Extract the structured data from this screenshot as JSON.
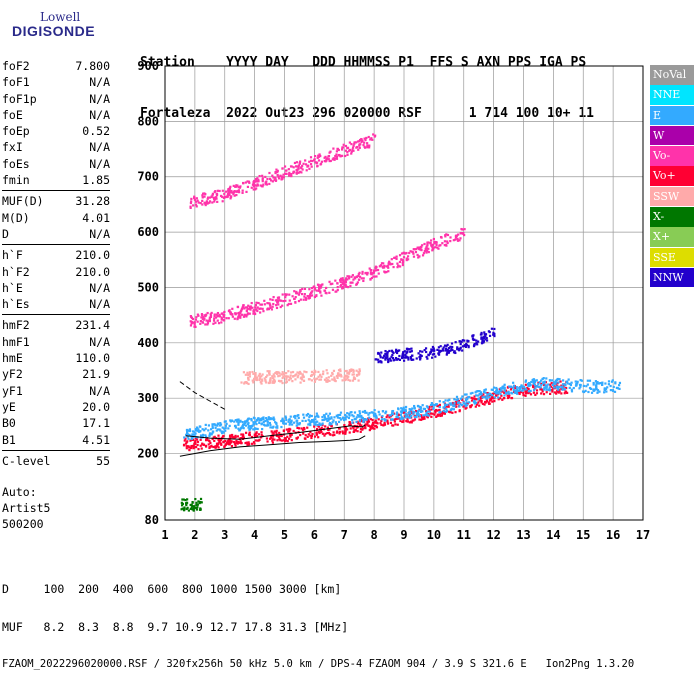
{
  "logo": {
    "line1": "Lowell",
    "line2": "DIGISONDE"
  },
  "header": {
    "labels": [
      "Station",
      "YYYY DAY",
      "DDD HHMMSS P1",
      "FFS S AXN PPS IGA PS"
    ],
    "values": [
      "Fortaleza",
      "2022 Out23",
      "296 020000 RSF",
      "1 714 100 10+ 11"
    ]
  },
  "params_groups": [
    [
      [
        "foF2",
        "7.800"
      ],
      [
        "foF1",
        "N/A"
      ],
      [
        "foF1p",
        "N/A"
      ],
      [
        "foE",
        "N/A"
      ],
      [
        "foEp",
        "0.52"
      ],
      [
        "fxI",
        "N/A"
      ],
      [
        "foEs",
        "N/A"
      ],
      [
        "fmin",
        "1.85"
      ]
    ],
    [
      [
        "MUF(D)",
        "31.28"
      ],
      [
        "M(D)",
        "4.01"
      ],
      [
        "D",
        "N/A"
      ]
    ],
    [
      [
        "h`F",
        "210.0"
      ],
      [
        "h`F2",
        "210.0"
      ],
      [
        "h`E",
        "N/A"
      ],
      [
        "h`Es",
        "N/A"
      ]
    ],
    [
      [
        "hmF2",
        "231.4"
      ],
      [
        "hmF1",
        "N/A"
      ],
      [
        "hmE",
        "110.0"
      ],
      [
        "yF2",
        "21.9"
      ],
      [
        "yF1",
        "N/A"
      ],
      [
        "yE",
        "20.0"
      ],
      [
        "B0",
        "17.1"
      ],
      [
        "B1",
        "4.51"
      ]
    ],
    [
      [
        "C-level",
        "55"
      ]
    ]
  ],
  "auto": {
    "line1": "Auto:",
    "line2": "Artist5",
    "line3": "500200"
  },
  "footer": {
    "d_row": "D     100  200  400  600  800 1000 1500 3000 [km]",
    "muf_row": "MUF   8.2  8.3  8.8  9.7 10.9 12.7 17.8 31.3 [MHz]",
    "info": "FZAOM_2022296020000.RSF / 320fx256h 50 kHz 5.0 km / DPS-4 FZAOM 904 / 3.9 S 321.6 E   Ion2Png 1.3.20"
  },
  "legend": [
    {
      "label": "NoVal",
      "color": "#9a9a9a"
    },
    {
      "label": "NNE",
      "color": "#00e5ff"
    },
    {
      "label": "E",
      "color": "#33aaff"
    },
    {
      "label": "W",
      "color": "#aa00aa"
    },
    {
      "label": "Vo-",
      "color": "#ff33aa"
    },
    {
      "label": "Vo+",
      "color": "#ff0033"
    },
    {
      "label": "SSW",
      "color": "#ffaaaa"
    },
    {
      "label": "X-",
      "color": "#007700"
    },
    {
      "label": "X+",
      "color": "#88cc55"
    },
    {
      "label": "SSE",
      "color": "#dddd00"
    },
    {
      "label": "NNW",
      "color": "#2200cc"
    }
  ],
  "chart_data": {
    "type": "scatter",
    "xlim": [
      1,
      17
    ],
    "ylim": [
      80,
      900
    ],
    "xticks": [
      1,
      2,
      3,
      4,
      5,
      6,
      7,
      8,
      9,
      10,
      11,
      12,
      13,
      14,
      15,
      16,
      17
    ],
    "yticks": [
      80,
      200,
      300,
      400,
      500,
      600,
      700,
      800,
      900
    ],
    "grid": true,
    "traces": [
      {
        "name": "O-F2 trace (Vo+)",
        "color_key": "Vo+",
        "x": [
          1.6,
          2.5,
          3.5,
          4.5,
          5.5,
          6.5,
          7.5,
          8.5,
          9.5,
          10.5,
          11.5,
          12.5,
          13.5,
          14.5
        ],
        "y": [
          218,
          222,
          228,
          232,
          238,
          245,
          252,
          262,
          272,
          285,
          298,
          312,
          320,
          322
        ]
      },
      {
        "name": "O-F2 trace (E)",
        "color_key": "E",
        "x": [
          1.6,
          2.5,
          3.5,
          4.5,
          5.5,
          6.5,
          7.5,
          8.5,
          9.5,
          10.5,
          11.5,
          12.5,
          13.5,
          14.5,
          15.5,
          16.2
        ],
        "y": [
          235,
          245,
          255,
          258,
          262,
          265,
          268,
          272,
          278,
          290,
          305,
          318,
          328,
          325,
          322,
          325
        ]
      },
      {
        "name": "F2 2nd hop (Vo-)",
        "color_key": "Vo-",
        "x": [
          1.8,
          3,
          4,
          5,
          6,
          7,
          8,
          9,
          10,
          11
        ],
        "y": [
          440,
          450,
          465,
          480,
          495,
          510,
          530,
          555,
          580,
          600
        ]
      },
      {
        "name": "F2 3rd hop (Vo-)",
        "color_key": "Vo-",
        "x": [
          1.8,
          3,
          4,
          5,
          6,
          7,
          8
        ],
        "y": [
          655,
          670,
          690,
          710,
          730,
          750,
          770
        ]
      },
      {
        "name": "spread (NNW)",
        "color_key": "NNW",
        "x": [
          8,
          9,
          10,
          10.5,
          11,
          11.5,
          12
        ],
        "y": [
          375,
          380,
          385,
          390,
          400,
          410,
          420
        ]
      },
      {
        "name": "E/Es (SSW)",
        "color_key": "SSW",
        "x": [
          3.5,
          4.5,
          5.5,
          6.5,
          7.5
        ],
        "y": [
          338,
          340,
          340,
          342,
          345
        ]
      },
      {
        "name": "low echoes (X-)",
        "color_key": "X-",
        "x": [
          1.5,
          2.2
        ],
        "y": [
          110,
          110
        ]
      }
    ],
    "model_curves": [
      {
        "x": [
          1.5,
          2.5,
          3.5,
          4.5,
          5.5,
          6.5,
          7.2,
          7.5,
          7.7
        ],
        "y": [
          195,
          205,
          212,
          216,
          220,
          222,
          224,
          226,
          232
        ]
      },
      {
        "x": [
          1.7,
          2.5,
          3.5,
          4.5,
          5.5,
          6.5,
          7.2,
          7.6,
          7.7
        ],
        "y": [
          232,
          228,
          226,
          232,
          238,
          245,
          250,
          248,
          252
        ]
      },
      {
        "x": [
          1.5,
          2,
          2.5,
          3
        ],
        "y": [
          330,
          310,
          295,
          280
        ]
      }
    ]
  }
}
